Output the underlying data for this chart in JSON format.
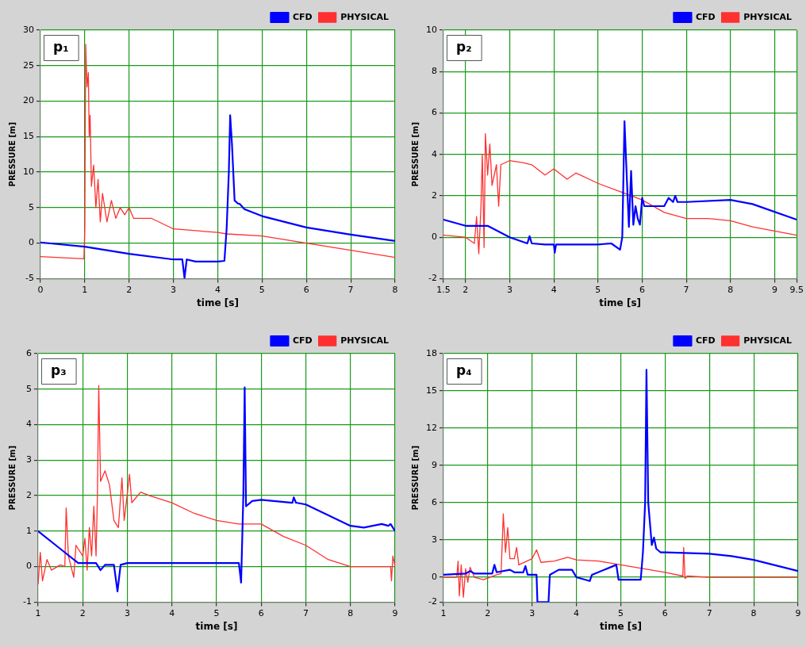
{
  "chart_data": [
    {
      "type": "line",
      "annotations": [
        "p₁"
      ],
      "xlabel": "time [s]",
      "ylabel": "PRESSURE [m]",
      "xlim": [
        0,
        8
      ],
      "ylim": [
        -5,
        30
      ],
      "xticks": [
        0,
        1,
        2,
        3,
        4,
        5,
        6,
        7,
        8
      ],
      "yticks": [
        -5,
        0,
        5,
        10,
        15,
        20,
        25,
        30
      ],
      "grid": true,
      "legend": "top right",
      "series": [
        {
          "name": "CFD",
          "color": "#0000ff",
          "x": [
            0,
            1,
            2,
            3,
            3.2,
            3.25,
            3.3,
            3.5,
            4.0,
            4.15,
            4.2,
            4.25,
            4.28,
            4.32,
            4.38,
            4.45,
            4.5,
            4.6,
            5,
            6,
            7,
            8
          ],
          "values": [
            0.1,
            -0.5,
            -1.5,
            -2.3,
            -2.3,
            -4.9,
            -2.3,
            -2.6,
            -2.6,
            -2.5,
            2,
            10,
            18,
            14,
            6,
            5.6,
            5.5,
            4.8,
            3.8,
            2.2,
            1.2,
            0.3
          ]
        },
        {
          "name": "PHYSICAL",
          "color": "#ff3030",
          "x": [
            0,
            0.98,
            1.0,
            1.02,
            1.05,
            1.08,
            1.1,
            1.12,
            1.15,
            1.2,
            1.25,
            1.3,
            1.35,
            1.4,
            1.5,
            1.6,
            1.7,
            1.8,
            1.9,
            2,
            2.1,
            2.5,
            3,
            4,
            4.2,
            5,
            6,
            7,
            8
          ],
          "values": [
            -1.9,
            -2.2,
            2,
            28,
            22,
            24,
            15,
            18,
            8,
            11,
            5,
            9,
            3,
            7,
            3,
            6,
            3.5,
            5,
            4,
            5,
            3.5,
            3.5,
            2,
            1.5,
            1.3,
            1,
            0,
            -1,
            -2
          ]
        }
      ]
    },
    {
      "type": "line",
      "annotations": [
        "p₂"
      ],
      "xlabel": "time [s]",
      "ylabel": "PRESSURE [m]",
      "xlim": [
        1.5,
        9.5
      ],
      "ylim": [
        -2,
        10
      ],
      "xticks": [
        1.5,
        2,
        3,
        4,
        5,
        6,
        7,
        8,
        9,
        9.5
      ],
      "yticks": [
        -2,
        0,
        2,
        4,
        6,
        8,
        10
      ],
      "grid": true,
      "legend": "top right",
      "series": [
        {
          "name": "CFD",
          "color": "#0000ff",
          "x": [
            1.5,
            2,
            2.5,
            3,
            3.4,
            3.45,
            3.5,
            3.8,
            4.0,
            4.02,
            4.05,
            5.0,
            5.3,
            5.5,
            5.55,
            5.6,
            5.65,
            5.7,
            5.75,
            5.8,
            5.85,
            5.9,
            5.95,
            6.0,
            6.05,
            6.3,
            6.5,
            6.6,
            6.7,
            6.75,
            6.8,
            7.0,
            8.0,
            8.5,
            9.5
          ],
          "values": [
            0.85,
            0.55,
            0.55,
            0.0,
            -0.3,
            0.05,
            -0.3,
            -0.35,
            -0.35,
            -0.75,
            -0.35,
            -0.35,
            -0.3,
            -0.6,
            0,
            5.6,
            3,
            0.5,
            3.2,
            0.6,
            1.5,
            0.9,
            0.6,
            1.9,
            1.5,
            1.5,
            1.5,
            1.9,
            1.7,
            2,
            1.7,
            1.7,
            1.8,
            1.6,
            0.85
          ]
        },
        {
          "name": "PHYSICAL",
          "color": "#ff3030",
          "x": [
            1.5,
            2,
            2.2,
            2.25,
            2.3,
            2.35,
            2.38,
            2.42,
            2.45,
            2.5,
            2.55,
            2.6,
            2.7,
            2.75,
            2.8,
            3,
            3.3,
            3.5,
            3.8,
            4.0,
            4.3,
            4.5,
            5.0,
            5.5,
            6,
            6.5,
            7,
            7.5,
            8,
            8.5,
            9,
            9.5
          ],
          "values": [
            0.1,
            0,
            -0.3,
            1,
            -0.8,
            1.5,
            4,
            -0.5,
            5,
            3,
            4.5,
            2.5,
            3.5,
            1.5,
            3.5,
            3.7,
            3.6,
            3.5,
            3.0,
            3.3,
            2.8,
            3.1,
            2.6,
            2.2,
            1.8,
            1.2,
            0.9,
            0.9,
            0.8,
            0.5,
            0.3,
            0.1
          ]
        }
      ]
    },
    {
      "type": "line",
      "annotations": [
        "p₃"
      ],
      "xlabel": "time [s]",
      "ylabel": "PRESSURE [m]",
      "xlim": [
        1,
        9
      ],
      "ylim": [
        -1,
        6
      ],
      "xticks": [
        1,
        2,
        3,
        4,
        5,
        6,
        7,
        8,
        9
      ],
      "yticks": [
        -1,
        0,
        1,
        2,
        3,
        4,
        5,
        6
      ],
      "grid": true,
      "legend": "top right",
      "series": [
        {
          "name": "CFD",
          "color": "#0000ff",
          "x": [
            1,
            1.5,
            1.9,
            2.3,
            2.4,
            2.5,
            2.7,
            2.78,
            2.85,
            3,
            5.5,
            5.55,
            5.6,
            5.63,
            5.66,
            5.8,
            6,
            6.7,
            6.73,
            6.78,
            7,
            7.5,
            8,
            8.3,
            8.7,
            8.85,
            8.9,
            9
          ],
          "values": [
            1.0,
            0.5,
            0.1,
            0.1,
            -0.1,
            0.05,
            0.05,
            -0.7,
            0.05,
            0.1,
            0.1,
            -0.45,
            2,
            5.05,
            1.7,
            1.85,
            1.88,
            1.8,
            1.95,
            1.8,
            1.75,
            1.45,
            1.15,
            1.1,
            1.2,
            1.15,
            1.2,
            1.0
          ]
        },
        {
          "name": "PHYSICAL",
          "color": "#ff3030",
          "x": [
            1,
            1.05,
            1.1,
            1.2,
            1.3,
            1.5,
            1.6,
            1.63,
            1.68,
            1.8,
            1.85,
            2.0,
            2.05,
            2.1,
            2.15,
            2.2,
            2.25,
            2.3,
            2.33,
            2.36,
            2.4,
            2.5,
            2.6,
            2.7,
            2.8,
            2.88,
            2.93,
            3.05,
            3.1,
            3.3,
            3.5,
            4,
            4.5,
            5,
            5.5,
            6,
            6.5,
            7,
            7.5,
            8,
            8.5,
            8.9,
            8.92,
            8.95,
            9
          ],
          "values": [
            -0.5,
            0.4,
            -0.4,
            0.2,
            -0.1,
            0.05,
            0,
            1.65,
            0.3,
            -0.3,
            0.6,
            0.3,
            0.8,
            -0.1,
            1.1,
            0.3,
            1.7,
            0.3,
            2,
            5.1,
            2.4,
            2.7,
            2.3,
            1.3,
            1.1,
            2.5,
            1.3,
            2.6,
            1.8,
            2.1,
            2.0,
            1.8,
            1.5,
            1.3,
            1.2,
            1.2,
            0.85,
            0.6,
            0.2,
            0.0,
            0.0,
            0,
            -0.4,
            0.3,
            0.0
          ]
        }
      ]
    },
    {
      "type": "line",
      "annotations": [
        "p₄"
      ],
      "xlabel": "time [s]",
      "ylabel": "PRESSURE [m]",
      "xlim": [
        1,
        9
      ],
      "ylim": [
        -2,
        18
      ],
      "xticks": [
        1,
        2,
        3,
        4,
        5,
        6,
        7,
        8,
        9
      ],
      "yticks": [
        -2,
        0,
        3,
        6,
        9,
        12,
        15,
        18
      ],
      "grid": true,
      "legend": "top right",
      "series": [
        {
          "name": "CFD",
          "color": "#0000ff",
          "x": [
            1,
            1.5,
            1.6,
            1.7,
            2.1,
            2.15,
            2.2,
            2.5,
            2.6,
            2.8,
            2.85,
            2.9,
            3.1,
            3.12,
            3.37,
            3.4,
            3.6,
            3.9,
            4,
            4.3,
            4.35,
            4.9,
            4.95,
            5.2,
            5.45,
            5.5,
            5.55,
            5.58,
            5.62,
            5.7,
            5.75,
            5.8,
            5.9,
            6,
            7,
            7.5,
            8,
            9
          ],
          "values": [
            0.2,
            0.3,
            0.5,
            0.3,
            0.3,
            1,
            0.4,
            0.6,
            0.4,
            0.4,
            0.9,
            0.2,
            0.2,
            -2,
            -2,
            0.2,
            0.6,
            0.6,
            0,
            -0.3,
            0.2,
            1,
            -0.2,
            -0.2,
            -0.2,
            2,
            6,
            16.7,
            6,
            2.6,
            3.2,
            2.3,
            2.0,
            2.0,
            1.9,
            1.7,
            1.4,
            0.5
          ]
        },
        {
          "name": "PHYSICAL",
          "color": "#ff3030",
          "x": [
            1,
            1.3,
            1.33,
            1.36,
            1.4,
            1.45,
            1.5,
            1.55,
            1.6,
            1.7,
            1.9,
            2.2,
            2.3,
            2.35,
            2.4,
            2.45,
            2.5,
            2.6,
            2.65,
            2.7,
            3.0,
            3.1,
            3.2,
            3.5,
            3.8,
            4,
            4.5,
            5,
            5.5,
            6,
            6.4,
            6.42,
            6.45,
            6.5,
            7,
            9
          ],
          "values": [
            0,
            0,
            1.3,
            -1.5,
            1,
            -1.6,
            0.7,
            -0.4,
            0.8,
            0,
            -0.2,
            0.2,
            0.3,
            5.1,
            2,
            4,
            1.5,
            1.5,
            2.4,
            1.0,
            1.5,
            2.2,
            1.2,
            1.3,
            1.6,
            1.4,
            1.3,
            1.0,
            0.7,
            0.4,
            0.1,
            2.4,
            -0.1,
            0.1,
            0.0,
            0.0
          ]
        }
      ]
    }
  ]
}
